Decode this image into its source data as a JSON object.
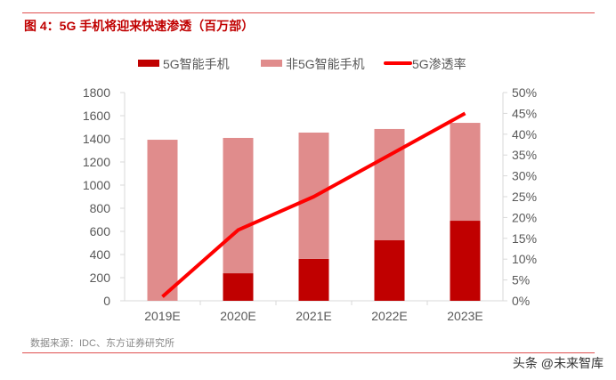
{
  "title": "图 4：5G 手机将迎来快速渗透（百万部）",
  "source": "数据来源：IDC、东方证券研究所",
  "watermark": "头条 @未来智库",
  "chart_data": {
    "type": "bar",
    "stacked": true,
    "categories": [
      "2019E",
      "2020E",
      "2021E",
      "2022E",
      "2023E"
    ],
    "series": [
      {
        "name": "5G智能手机",
        "type": "bar",
        "axis": "left",
        "color": "#c00000",
        "values": [
          0,
          238,
          362,
          523,
          692
        ]
      },
      {
        "name": "非5G智能手机",
        "type": "bar",
        "axis": "left",
        "color": "#e08c8c",
        "values": [
          1392,
          1170,
          1092,
          962,
          846
        ]
      },
      {
        "name": "5G渗透率",
        "type": "line",
        "axis": "right",
        "color": "#ff0000",
        "values": [
          0.01,
          0.17,
          0.25,
          0.35,
          0.45
        ]
      }
    ],
    "ylim": [
      0,
      1800
    ],
    "yticks": [
      "0",
      "200",
      "400",
      "600",
      "800",
      "1000",
      "1200",
      "1400",
      "1600",
      "1800"
    ],
    "y2lim": [
      0,
      0.5
    ],
    "y2ticks": [
      "0%",
      "5%",
      "10%",
      "15%",
      "20%",
      "25%",
      "30%",
      "35%",
      "40%",
      "45%",
      "50%"
    ],
    "legend": "top"
  }
}
